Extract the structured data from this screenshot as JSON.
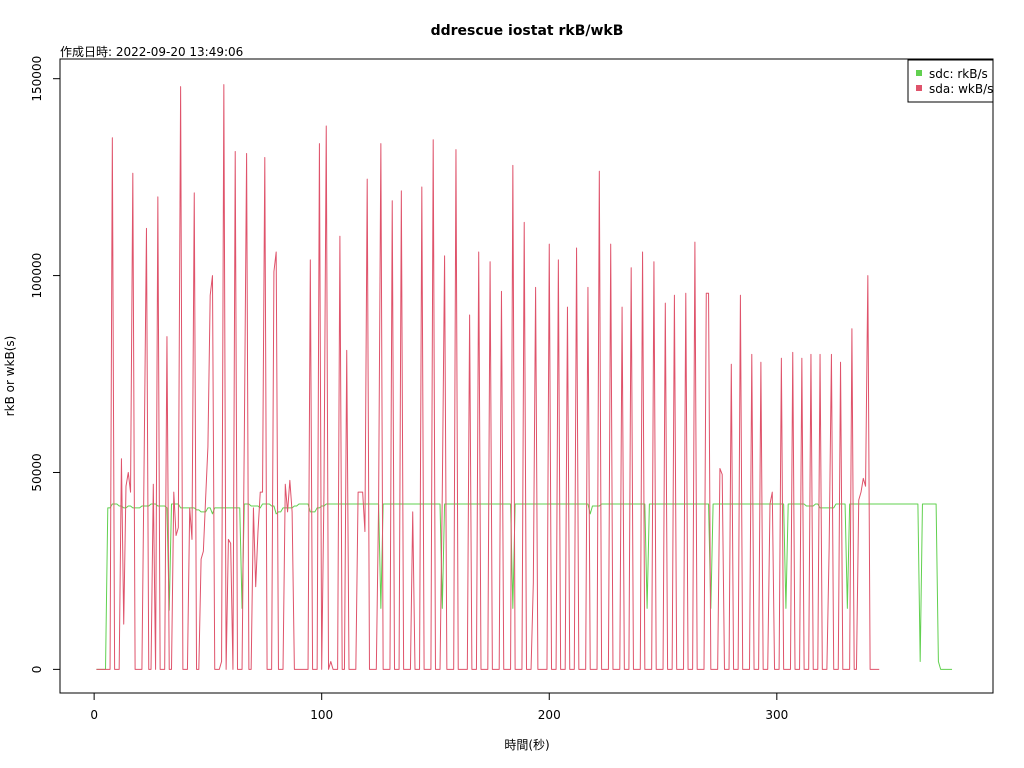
{
  "chart_data": {
    "type": "line",
    "title": "ddrescue iostat rkB/wkB",
    "annotation": "作成日時: 2022-09-20 13:49:06",
    "xlabel": "時間(秒)",
    "ylabel": "rkB or wkB(s)",
    "xlim": [
      -15,
      395
    ],
    "ylim": [
      -6000,
      155000
    ],
    "x_ticks": [
      0,
      100,
      200,
      300
    ],
    "y_ticks": [
      0,
      50000,
      100000,
      150000
    ],
    "x_tick_labels": [
      "0",
      "100",
      "200",
      "300"
    ],
    "y_tick_labels": [
      "0",
      "50000",
      "100000",
      "150000"
    ],
    "legend_position": "top-right",
    "x_start": 1,
    "x_step": 1,
    "series": [
      {
        "name": "sdc: rkB/s",
        "color": "#61d04f",
        "values": [
          0,
          0,
          0,
          0,
          0,
          41000,
          41000,
          42000,
          42000,
          42000,
          41500,
          41500,
          41000,
          41000,
          41500,
          41500,
          41000,
          41000,
          41000,
          41000,
          41500,
          41500,
          41500,
          41500,
          42000,
          42000,
          42000,
          41500,
          41500,
          41500,
          41500,
          41000,
          15000,
          42000,
          42000,
          42000,
          42000,
          41000,
          41000,
          41000,
          41000,
          41000,
          41000,
          41000,
          40500,
          40500,
          40000,
          40000,
          40000,
          41000,
          41000,
          39500,
          41000,
          41000,
          41000,
          41000,
          41000,
          41000,
          41000,
          41000,
          41000,
          41000,
          41000,
          41000,
          15500,
          42000,
          42000,
          42000,
          41500,
          41500,
          41500,
          41500,
          41000,
          42000,
          42000,
          42000,
          42000,
          41500,
          41500,
          39500,
          40000,
          40000,
          41000,
          41000,
          41000,
          41000,
          41000,
          41500,
          41500,
          42000,
          42000,
          42000,
          42000,
          42000,
          40000,
          40000,
          40000,
          41000,
          41000,
          41500,
          41500,
          42000,
          42000,
          42000,
          42000,
          42000,
          42000,
          42000,
          42000,
          42000,
          42000,
          42000,
          42000,
          42000,
          42000,
          42000,
          42000,
          42000,
          42000,
          42000,
          42000,
          42000,
          42000,
          42000,
          42000,
          15500,
          42000,
          42000,
          42000,
          42000,
          42000,
          42000,
          42000,
          42000,
          42000,
          42000,
          42000,
          42000,
          42000,
          42000,
          42000,
          42000,
          42000,
          42000,
          42000,
          42000,
          42000,
          42000,
          42000,
          42000,
          42000,
          42000,
          15500,
          42000,
          42000,
          42000,
          42000,
          42000,
          42000,
          42000,
          42000,
          42000,
          42000,
          42000,
          42000,
          42000,
          42000,
          42000,
          42000,
          42000,
          42000,
          42000,
          42000,
          42000,
          42000,
          42000,
          42000,
          42000,
          42000,
          42000,
          42000,
          42000,
          42000,
          15500,
          42000,
          42000,
          42000,
          42000,
          42000,
          42000,
          42000,
          42000,
          42000,
          42000,
          42000,
          42000,
          42000,
          42000,
          42000,
          42000,
          42000,
          42000,
          42000,
          42000,
          42000,
          42000,
          42000,
          42000,
          42000,
          42000,
          42000,
          42000,
          42000,
          42000,
          42000,
          42000,
          42000,
          39500,
          41500,
          41500,
          41500,
          41500,
          42000,
          42000,
          42000,
          42000,
          42000,
          42000,
          42000,
          42000,
          42000,
          42000,
          42000,
          42000,
          42000,
          42000,
          42000,
          42000,
          42000,
          42000,
          42000,
          42000,
          15500,
          42000,
          42000,
          42000,
          42000,
          42000,
          42000,
          42000,
          42000,
          42000,
          42000,
          42000,
          42000,
          42000,
          42000,
          42000,
          42000,
          42000,
          42000,
          42000,
          42000,
          42000,
          42000,
          42000,
          42000,
          42000,
          42000,
          42000,
          15500,
          42000,
          42000,
          42000,
          42000,
          42000,
          42000,
          42000,
          42000,
          42000,
          42000,
          42000,
          42000,
          42000,
          42000,
          42000,
          42000,
          42000,
          42000,
          42000,
          42000,
          42000,
          42000,
          42000,
          42000,
          42000,
          42000,
          42000,
          42000,
          42000,
          42000,
          42000,
          42000,
          15500,
          42000,
          42000,
          42000,
          42000,
          42000,
          42000,
          42000,
          42000,
          41500,
          41500,
          41500,
          41500,
          42000,
          42000,
          41000,
          41000,
          41000,
          41000,
          41000,
          41000,
          41000,
          42000,
          42000,
          42000,
          42000,
          42000,
          15500,
          42000,
          42000,
          42000,
          42000,
          42000,
          42000,
          42000,
          42000,
          42000,
          42000,
          42000,
          42000,
          42000,
          42000,
          42000,
          42000,
          42000,
          42000,
          42000,
          42000,
          42000,
          42000,
          42000,
          42000,
          42000,
          42000,
          42000,
          42000,
          42000,
          42000,
          42000,
          2000,
          42000,
          42000,
          42000,
          42000,
          42000,
          42000,
          42000,
          2000,
          0,
          0,
          0,
          0,
          0,
          0
        ]
      },
      {
        "name": "sda: wkB/s",
        "color": "#df536b",
        "values": [
          0,
          0,
          0,
          0,
          0,
          0,
          0,
          135000,
          0,
          0,
          0,
          53500,
          11500,
          46500,
          50000,
          45000,
          126000,
          0,
          0,
          0,
          0,
          55000,
          112000,
          0,
          0,
          47000,
          0,
          120000,
          0,
          0,
          0,
          84500,
          0,
          0,
          45000,
          34000,
          36000,
          148000,
          0,
          0,
          0,
          41000,
          33000,
          121000,
          0,
          0,
          28000,
          30000,
          43500,
          56500,
          95000,
          100000,
          0,
          0,
          0,
          2000,
          148500,
          0,
          33000,
          32000,
          0,
          131500,
          0,
          0,
          0,
          59000,
          131000,
          0,
          0,
          41000,
          21000,
          35000,
          45000,
          45000,
          130000,
          0,
          0,
          0,
          101000,
          106000,
          0,
          0,
          0,
          47000,
          40000,
          48000,
          40000,
          0,
          0,
          0,
          0,
          0,
          0,
          0,
          104000,
          0,
          0,
          0,
          133500,
          0,
          45000,
          138000,
          0,
          2000,
          0,
          0,
          0,
          110000,
          0,
          0,
          81000,
          0,
          0,
          0,
          0,
          45000,
          45000,
          45000,
          35000,
          124500,
          0,
          0,
          0,
          0,
          42000,
          133500,
          0,
          0,
          0,
          0,
          119000,
          0,
          0,
          0,
          121500,
          0,
          0,
          0,
          0,
          40000,
          0,
          0,
          0,
          122500,
          0,
          0,
          0,
          0,
          134500,
          0,
          0,
          0,
          45000,
          105000,
          0,
          0,
          0,
          0,
          132000,
          0,
          0,
          0,
          0,
          0,
          90000,
          0,
          0,
          0,
          106000,
          0,
          0,
          0,
          0,
          103500,
          0,
          0,
          0,
          0,
          96000,
          0,
          0,
          0,
          0,
          128000,
          0,
          0,
          0,
          0,
          113500,
          0,
          0,
          0,
          22000,
          97000,
          0,
          0,
          0,
          0,
          0,
          108000,
          0,
          0,
          0,
          104000,
          0,
          0,
          0,
          92000,
          0,
          0,
          0,
          107000,
          0,
          0,
          0,
          0,
          97000,
          0,
          0,
          0,
          0,
          126500,
          0,
          0,
          0,
          0,
          108000,
          0,
          0,
          0,
          0,
          92000,
          0,
          0,
          0,
          102000,
          0,
          0,
          0,
          0,
          106000,
          0,
          0,
          0,
          0,
          103500,
          0,
          0,
          0,
          0,
          93000,
          0,
          0,
          0,
          95000,
          0,
          0,
          0,
          0,
          95500,
          0,
          0,
          0,
          108500,
          0,
          0,
          0,
          0,
          95500,
          95500,
          0,
          0,
          0,
          0,
          51000,
          49500,
          0,
          0,
          0,
          77500,
          0,
          0,
          0,
          95000,
          0,
          0,
          0,
          0,
          80000,
          0,
          0,
          0,
          78000,
          0,
          0,
          0,
          42000,
          45000,
          0,
          0,
          0,
          79000,
          0,
          0,
          0,
          0,
          80500,
          0,
          0,
          0,
          79000,
          0,
          0,
          0,
          80000,
          0,
          0,
          0,
          80000,
          0,
          0,
          0,
          31000,
          80000,
          0,
          0,
          0,
          78000,
          0,
          0,
          0,
          0,
          86500,
          0,
          0,
          43000,
          45000,
          48500,
          46500,
          100000,
          0,
          0,
          0,
          0,
          0
        ]
      }
    ]
  }
}
